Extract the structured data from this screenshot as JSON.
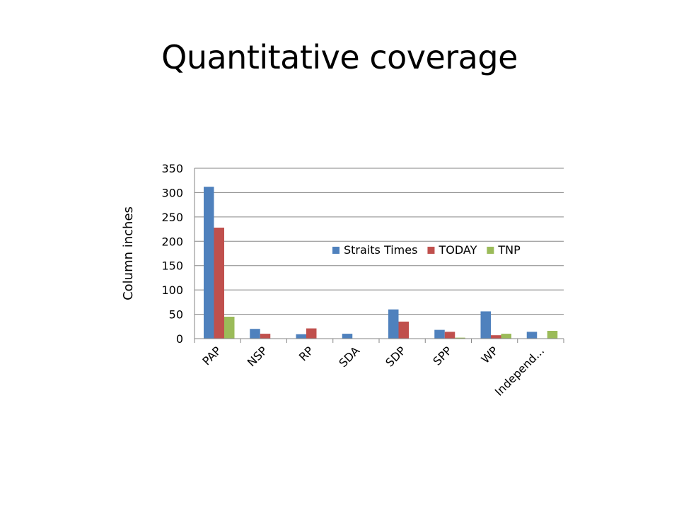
{
  "slide": {
    "title": "Quantitative coverage"
  },
  "chart_data": {
    "type": "bar",
    "title": "",
    "xlabel": "",
    "ylabel": "Column inches",
    "ylim": [
      0,
      350
    ],
    "ytick_step": 50,
    "grid": true,
    "legend_position": "center",
    "categories": [
      "PAP",
      "NSP",
      "RP",
      "SDA",
      "SDP",
      "SPP",
      "WP",
      "Independ..."
    ],
    "series": [
      {
        "name": "Straits Times",
        "color": "#4F81BD",
        "values": [
          312,
          20,
          9,
          10,
          60,
          18,
          56,
          14
        ]
      },
      {
        "name": "TODAY",
        "color": "#C0504D",
        "values": [
          228,
          10,
          21,
          0,
          35,
          14,
          7,
          0
        ]
      },
      {
        "name": "TNP",
        "color": "#9BBB59",
        "values": [
          45,
          0,
          0,
          0,
          0,
          2,
          10,
          16
        ]
      }
    ]
  }
}
